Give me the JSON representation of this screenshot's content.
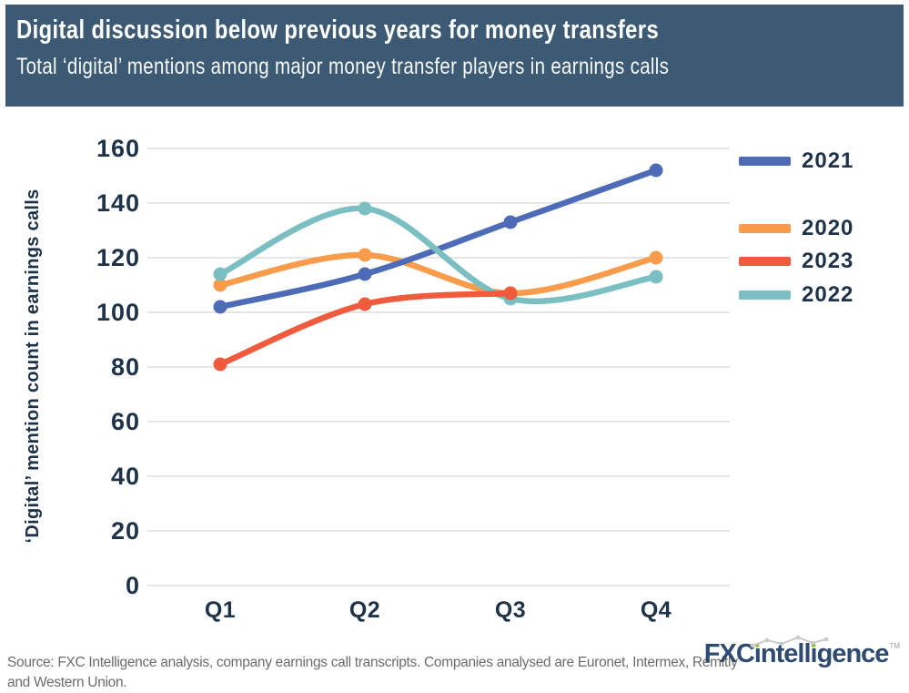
{
  "header": {
    "title": "Digital discussion below previous years for money transfers",
    "subtitle": "Total ‘digital’ mentions among major money transfer players in earnings calls"
  },
  "chart_data": {
    "type": "line",
    "categories": [
      "Q1",
      "Q2",
      "Q3",
      "Q4"
    ],
    "series": [
      {
        "name": "2020",
        "color": "#f89b4b",
        "values": [
          110,
          121,
          107,
          120
        ]
      },
      {
        "name": "2021",
        "color": "#4e6bb8",
        "values": [
          102,
          114,
          133,
          152
        ]
      },
      {
        "name": "2022",
        "color": "#7bbfc2",
        "values": [
          114,
          138,
          105,
          113
        ]
      },
      {
        "name": "2023",
        "color": "#f15b3d",
        "values": [
          81,
          103,
          107,
          null
        ]
      }
    ],
    "title": "Digital discussion below previous years for money transfers",
    "xlabel": "",
    "ylabel": "‘Digital’ mention count in earnings calls",
    "ylim": [
      0,
      160
    ],
    "y_ticks": [
      0,
      20,
      40,
      60,
      80,
      100,
      120,
      140,
      160
    ],
    "grid": true,
    "legend_position": "right",
    "legend_order": [
      "2021",
      "2020",
      "2023",
      "2022"
    ]
  },
  "footer": {
    "source": "Source: FXC Intelligence analysis, company earnings call transcripts. Companies analysed are Euronet, Intermex, Remitly and Western Union.",
    "logo_brand": "FXCintelligence",
    "logo_tm": "TM"
  }
}
